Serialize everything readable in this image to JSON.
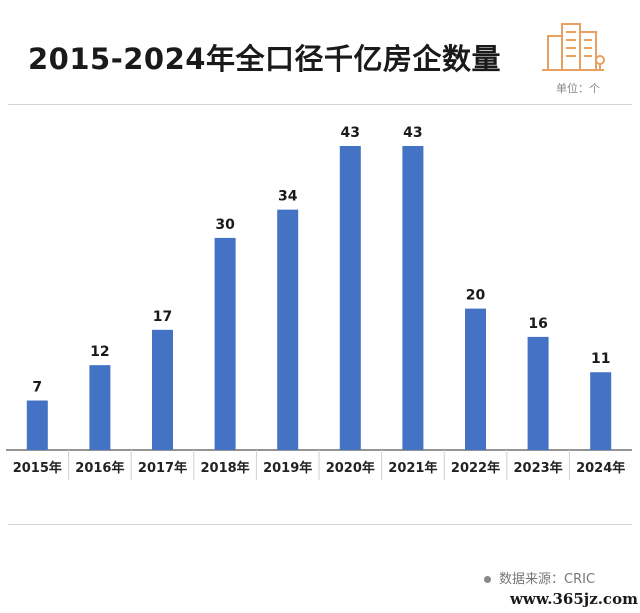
{
  "title": "2015-2024年全口径千亿房企数量",
  "unit": "单位：个",
  "source": "数据来源：CRIC",
  "site_watermark": "www.365jz.com",
  "logo_icon": "building-icon",
  "colors": {
    "bar": "#4472c4",
    "axis": "#555555",
    "accent": "#e8a060"
  },
  "chart_data": {
    "type": "bar",
    "title": "2015-2024年全口径千亿房企数量",
    "categories": [
      "2015年",
      "2016年",
      "2017年",
      "2018年",
      "2019年",
      "2020年",
      "2021年",
      "2022年",
      "2023年",
      "2024年"
    ],
    "values": [
      7,
      12,
      17,
      30,
      34,
      43,
      43,
      20,
      16,
      11
    ],
    "ylabel": "",
    "xlabel": "",
    "ylim": [
      0,
      43
    ],
    "grid": false,
    "legend": "none"
  }
}
